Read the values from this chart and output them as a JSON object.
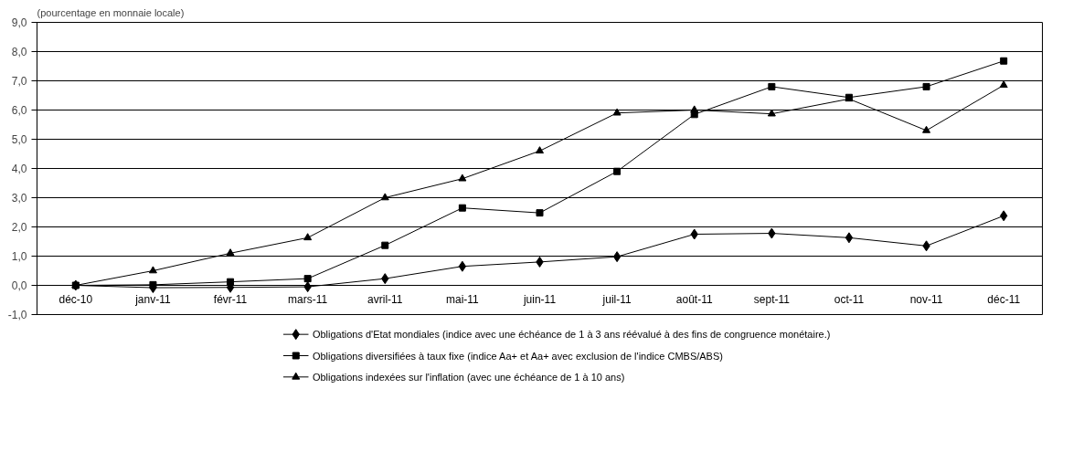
{
  "chart_data": {
    "type": "line",
    "subtitle": "(pourcentage en monnaie locale)",
    "categories": [
      "déc-10",
      "janv-11",
      "févr-11",
      "mars-11",
      "avril-11",
      "mai-11",
      "juin-11",
      "juil-11",
      "août-11",
      "sept-11",
      "oct-11",
      "nov-11",
      "déc-11"
    ],
    "series": [
      {
        "name": "Obligations d'Etat mondiales (indice avec une échéance de 1 à 3 ans réévalué à des fins de congruence monétaire.)",
        "color": "#000000",
        "marker": "diamond",
        "values": [
          0,
          -0.08,
          -0.07,
          -0.05,
          0.23,
          0.65,
          0.8,
          0.98,
          1.75,
          1.78,
          1.63,
          1.35,
          2.38
        ]
      },
      {
        "name": "Obligations diversifiées à taux fixe (indice Aa+ et Aa+ avec exclusion de l'indice CMBS/ABS)",
        "color": "#000000",
        "marker": "square",
        "values": [
          0,
          0.02,
          0.12,
          0.23,
          1.37,
          2.65,
          2.48,
          3.9,
          5.85,
          6.8,
          6.43,
          6.8,
          7.68
        ]
      },
      {
        "name": "Obligations indexées sur l'inflation (avec une échéance de 1 à 10 ans)",
        "color": "#000000",
        "marker": "triangle",
        "values": [
          0,
          0.5,
          1.1,
          1.63,
          3.0,
          3.65,
          4.6,
          5.9,
          6.0,
          5.87,
          6.38,
          5.3,
          6.85
        ]
      }
    ],
    "ylim": [
      -1,
      9
    ],
    "yticks": [
      {
        "value": -1,
        "label": "-1,0"
      },
      {
        "value": 0,
        "label": "0,0"
      },
      {
        "value": 1,
        "label": "1,0"
      },
      {
        "value": 2,
        "label": "2,0"
      },
      {
        "value": 3,
        "label": "3,0"
      },
      {
        "value": 4,
        "label": "4,0"
      },
      {
        "value": 5,
        "label": "5,0"
      },
      {
        "value": 6,
        "label": "6,0"
      },
      {
        "value": 7,
        "label": "7,0"
      },
      {
        "value": 8,
        "label": "8,0"
      },
      {
        "value": 9,
        "label": "9,0"
      }
    ],
    "grid": "y",
    "legend": "bottom",
    "line_style": "solid"
  }
}
